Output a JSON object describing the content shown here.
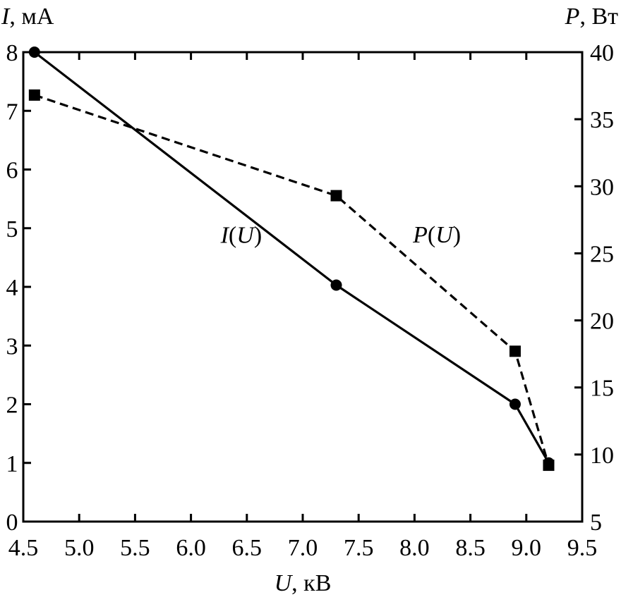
{
  "chart_data": {
    "type": "line",
    "x_axis": {
      "label_var": "U",
      "label_unit": ", кВ",
      "range": [
        4.5,
        9.5
      ],
      "ticks": [
        "4.5",
        "5.0",
        "5.5",
        "6.0",
        "6.5",
        "7.0",
        "7.5",
        "8.0",
        "8.5",
        "9.0",
        "9.5"
      ]
    },
    "y_left": {
      "label_var": "I",
      "label_unit": ", мА",
      "range": [
        0,
        8
      ],
      "ticks": [
        "0",
        "1",
        "2",
        "3",
        "4",
        "5",
        "6",
        "7",
        "8"
      ]
    },
    "y_right": {
      "label_var": "P",
      "label_unit": ", Вт",
      "range": [
        5,
        40
      ],
      "ticks": [
        "5",
        "10",
        "15",
        "20",
        "25",
        "30",
        "35",
        "40"
      ]
    },
    "series": [
      {
        "name": "I(U)",
        "label_var": "I",
        "label_arg": "U",
        "axis": "left",
        "line": "solid",
        "marker": "circle",
        "x": [
          4.6,
          7.3,
          8.9,
          9.2
        ],
        "y": [
          8.0,
          4.03,
          2.0,
          1.0
        ],
        "label_at": [
          6.45,
          4.75
        ]
      },
      {
        "name": "P(U)",
        "label_var": "P",
        "label_arg": "U",
        "axis": "right",
        "line": "dashed",
        "marker": "square",
        "x": [
          4.6,
          7.3,
          8.9,
          9.2
        ],
        "y": [
          36.8,
          29.3,
          17.7,
          9.2
        ],
        "label_at": [
          8.2,
          25.8
        ]
      }
    ],
    "grid": false,
    "legend": "none"
  }
}
